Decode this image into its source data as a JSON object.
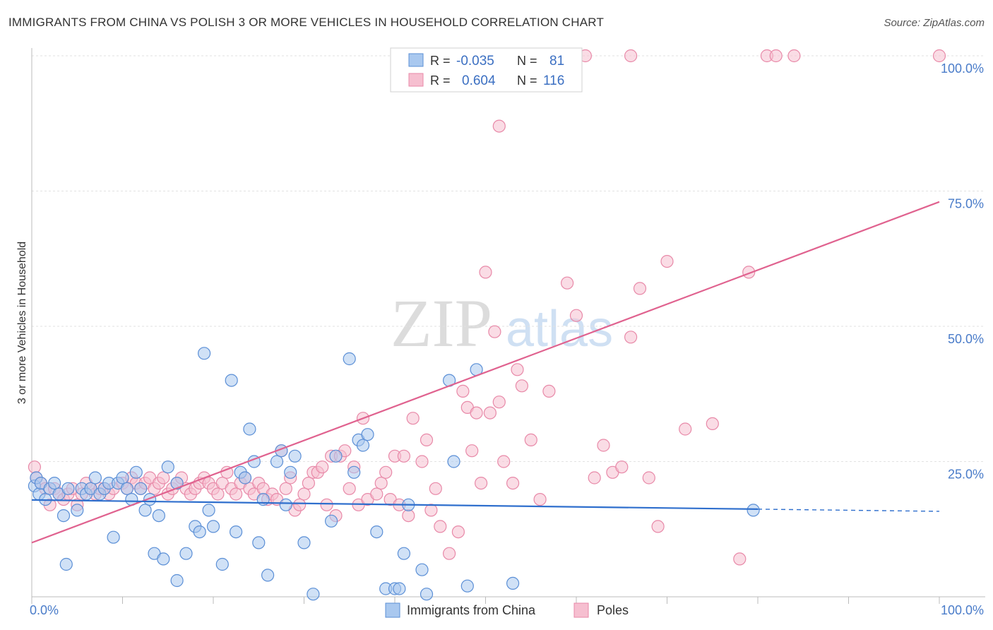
{
  "chart_data": {
    "type": "scatter",
    "title": "IMMIGRANTS FROM CHINA VS POLISH 3 OR MORE VEHICLES IN HOUSEHOLD CORRELATION CHART",
    "source": "Source: ZipAtlas.com",
    "xlabel": "",
    "ylabel": "3 or more Vehicles in Household",
    "xlim": [
      0,
      100
    ],
    "ylim": [
      0,
      100
    ],
    "x_tick_labels": [
      "0.0%",
      "100.0%"
    ],
    "y_tick_labels": [
      "25.0%",
      "50.0%",
      "75.0%",
      "100.0%"
    ],
    "y_ticks": [
      25,
      50,
      75,
      100
    ],
    "grid": true,
    "watermark": {
      "zip": "ZIP",
      "atlas": "atlas"
    },
    "legend_position": "top-center",
    "colors": {
      "china_fill": "#a9c8ef",
      "china_stroke": "#5b8fd6",
      "china_line": "#2f6fcd",
      "poles_fill": "#f6bfd0",
      "poles_stroke": "#e889a8",
      "poles_line": "#e0628f",
      "value_text": "#3b6fc2",
      "axis_text": "#4a7cc9"
    },
    "stats": [
      {
        "name": "Immigrants from China",
        "r_label": "R =",
        "r": "-0.035",
        "n_label": "N =",
        "n": "81"
      },
      {
        "name": "Poles",
        "r_label": "R =",
        "r": "0.604",
        "n_label": "N =",
        "n": "116"
      }
    ],
    "series": [
      {
        "name": "Immigrants from China",
        "trend": {
          "x0": 0,
          "y0": 17.9,
          "x1": 80,
          "y1": 16.2,
          "dash_to": 100,
          "dash_y": 15.8
        },
        "points": [
          [
            0.3,
            20.5
          ],
          [
            0.5,
            22
          ],
          [
            0.8,
            19
          ],
          [
            1,
            21
          ],
          [
            1.5,
            18
          ],
          [
            2,
            20
          ],
          [
            2.5,
            21
          ],
          [
            3,
            19
          ],
          [
            3.5,
            15
          ],
          [
            3.8,
            6
          ],
          [
            4,
            20
          ],
          [
            5,
            16
          ],
          [
            5.5,
            20
          ],
          [
            6,
            19
          ],
          [
            6.5,
            20
          ],
          [
            7,
            22
          ],
          [
            7.5,
            19
          ],
          [
            8,
            20
          ],
          [
            8.5,
            21
          ],
          [
            9,
            11
          ],
          [
            9.5,
            21
          ],
          [
            10,
            22
          ],
          [
            10.5,
            20
          ],
          [
            11,
            18
          ],
          [
            11.5,
            23
          ],
          [
            12,
            20
          ],
          [
            12.5,
            16
          ],
          [
            13,
            18
          ],
          [
            13.5,
            8
          ],
          [
            14,
            15
          ],
          [
            14.5,
            7
          ],
          [
            15,
            24
          ],
          [
            16,
            21
          ],
          [
            16,
            3
          ],
          [
            17,
            8
          ],
          [
            18,
            13
          ],
          [
            18.5,
            12
          ],
          [
            19,
            45
          ],
          [
            19.5,
            16
          ],
          [
            20,
            13
          ],
          [
            21,
            6
          ],
          [
            22,
            40
          ],
          [
            22.5,
            12
          ],
          [
            23,
            23
          ],
          [
            23.5,
            22
          ],
          [
            24,
            31
          ],
          [
            24.5,
            25
          ],
          [
            25,
            10
          ],
          [
            25.5,
            18
          ],
          [
            26,
            4
          ],
          [
            27,
            25
          ],
          [
            27.5,
            27
          ],
          [
            28,
            17
          ],
          [
            28.5,
            23
          ],
          [
            29,
            26
          ],
          [
            30,
            10
          ],
          [
            31,
            0.5
          ],
          [
            33,
            14
          ],
          [
            33.5,
            26
          ],
          [
            35,
            44
          ],
          [
            35.5,
            23
          ],
          [
            36,
            29
          ],
          [
            36.5,
            28
          ],
          [
            37,
            30
          ],
          [
            38,
            12
          ],
          [
            39,
            1.5
          ],
          [
            40,
            1.5
          ],
          [
            40.5,
            1.5
          ],
          [
            41,
            8
          ],
          [
            41.5,
            17
          ],
          [
            43,
            5
          ],
          [
            43.5,
            0.5
          ],
          [
            46,
            40
          ],
          [
            46.5,
            25
          ],
          [
            48,
            2
          ],
          [
            49,
            42
          ],
          [
            53,
            2.5
          ],
          [
            79.5,
            16
          ]
        ]
      },
      {
        "name": "Poles",
        "trend": {
          "x0": 0,
          "y0": 10,
          "x1": 100,
          "y1": 73
        },
        "points": [
          [
            0.3,
            24
          ],
          [
            0.5,
            22
          ],
          [
            1,
            21
          ],
          [
            1.5,
            20
          ],
          [
            2,
            17
          ],
          [
            2.5,
            20
          ],
          [
            3,
            19
          ],
          [
            3.5,
            18
          ],
          [
            4,
            19
          ],
          [
            4.5,
            20
          ],
          [
            5,
            17
          ],
          [
            5.5,
            19
          ],
          [
            6,
            21
          ],
          [
            6.5,
            20
          ],
          [
            7,
            19
          ],
          [
            7.5,
            20
          ],
          [
            8,
            20
          ],
          [
            8.5,
            19
          ],
          [
            9,
            20
          ],
          [
            10,
            21
          ],
          [
            10.5,
            20
          ],
          [
            11,
            22
          ],
          [
            11.5,
            21
          ],
          [
            12,
            20
          ],
          [
            12.5,
            21
          ],
          [
            13,
            22
          ],
          [
            13.5,
            20
          ],
          [
            14,
            21
          ],
          [
            14.5,
            22
          ],
          [
            15,
            19
          ],
          [
            15.5,
            20
          ],
          [
            16,
            21
          ],
          [
            16.5,
            22
          ],
          [
            17,
            20
          ],
          [
            17.5,
            19
          ],
          [
            18,
            20
          ],
          [
            18.5,
            21
          ],
          [
            19,
            22
          ],
          [
            19.5,
            21
          ],
          [
            20,
            20
          ],
          [
            20.5,
            19
          ],
          [
            21,
            21
          ],
          [
            21.5,
            23
          ],
          [
            22,
            20
          ],
          [
            22.5,
            19
          ],
          [
            23,
            21
          ],
          [
            23.5,
            22
          ],
          [
            24,
            20
          ],
          [
            24.5,
            19
          ],
          [
            25,
            21
          ],
          [
            25.5,
            20
          ],
          [
            26,
            18
          ],
          [
            26.5,
            19
          ],
          [
            27,
            18
          ],
          [
            27.5,
            27
          ],
          [
            28,
            20
          ],
          [
            28.5,
            22
          ],
          [
            29,
            16
          ],
          [
            29.5,
            17
          ],
          [
            30,
            19
          ],
          [
            30.5,
            21
          ],
          [
            31,
            23
          ],
          [
            31.5,
            23
          ],
          [
            32,
            24
          ],
          [
            32.5,
            17
          ],
          [
            33,
            26
          ],
          [
            33.5,
            15
          ],
          [
            34,
            26
          ],
          [
            34.5,
            27
          ],
          [
            35,
            20
          ],
          [
            35.5,
            24
          ],
          [
            36,
            17
          ],
          [
            36.5,
            33
          ],
          [
            37,
            18
          ],
          [
            38,
            19
          ],
          [
            38.5,
            21
          ],
          [
            39,
            23
          ],
          [
            39.5,
            18
          ],
          [
            40,
            26
          ],
          [
            40.5,
            17
          ],
          [
            41,
            26
          ],
          [
            41.5,
            15
          ],
          [
            42,
            33
          ],
          [
            43,
            25
          ],
          [
            43.5,
            29
          ],
          [
            44,
            16
          ],
          [
            44.5,
            20
          ],
          [
            45,
            13
          ],
          [
            46,
            8
          ],
          [
            47,
            12
          ],
          [
            47.5,
            38
          ],
          [
            48,
            35
          ],
          [
            48.5,
            27
          ],
          [
            49,
            34
          ],
          [
            49.5,
            21
          ],
          [
            50,
            60
          ],
          [
            50.5,
            34
          ],
          [
            51,
            49
          ],
          [
            51.5,
            36
          ],
          [
            52,
            25
          ],
          [
            53,
            21
          ],
          [
            53.5,
            42
          ],
          [
            54,
            39
          ],
          [
            55,
            29
          ],
          [
            56,
            18
          ],
          [
            57,
            38
          ],
          [
            59,
            58
          ],
          [
            60,
            52
          ],
          [
            62,
            22
          ],
          [
            63,
            28
          ],
          [
            64,
            23
          ],
          [
            65,
            24
          ],
          [
            66,
            48
          ],
          [
            67,
            57
          ],
          [
            68,
            22
          ],
          [
            69,
            13
          ],
          [
            70,
            62
          ],
          [
            72,
            31
          ],
          [
            75,
            32
          ],
          [
            78,
            7
          ],
          [
            79,
            60
          ],
          [
            53,
            100
          ],
          [
            61,
            100
          ],
          [
            66,
            100
          ],
          [
            81,
            100
          ],
          [
            82,
            100
          ],
          [
            84,
            100
          ],
          [
            100,
            100
          ],
          [
            51.5,
            87
          ]
        ]
      }
    ]
  }
}
